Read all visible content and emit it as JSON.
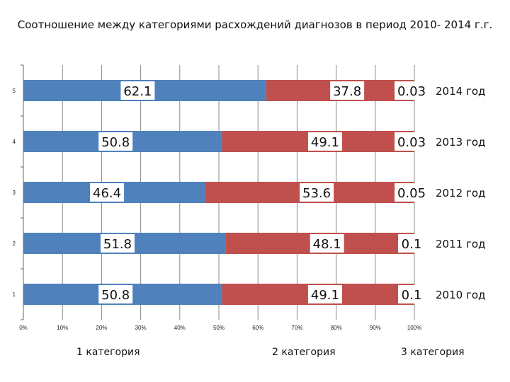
{
  "title": "Соотношение между категориями расхождений диагнозов  в период 2010- 2014 г.г.",
  "legend": [
    "1 категория",
    "2 категория",
    "3 категория"
  ],
  "colors": {
    "cat1": "#4F81BD",
    "cat2": "#C0504D",
    "cat3": "#9BBB59"
  },
  "chart_data": {
    "type": "bar",
    "orientation": "horizontal",
    "stacked": "100%",
    "categories": [
      "1",
      "2",
      "3",
      "4",
      "5"
    ],
    "row_labels": [
      "2010 год",
      "2011 год",
      "2012 год",
      "2013 год",
      "2014 год"
    ],
    "series": [
      {
        "name": "1 категория",
        "values": [
          50.8,
          51.8,
          46.4,
          50.8,
          62.1
        ],
        "labels": [
          "50.8",
          "51.8",
          "46.4",
          "50.8",
          "62.1"
        ]
      },
      {
        "name": "2 категория",
        "values": [
          49.1,
          48.1,
          53.6,
          49.1,
          37.8
        ],
        "labels": [
          "49.1",
          "48.1",
          "53.6",
          "49.1",
          "37.8"
        ]
      },
      {
        "name": "3 категория",
        "values": [
          0.1,
          0.1,
          0.05,
          0.03,
          0.03
        ],
        "labels": [
          "0.1",
          "0.1",
          "0.05",
          "0.03",
          "0.03"
        ]
      }
    ],
    "xlim": [
      0,
      100
    ],
    "xticks": [
      "0%",
      "10%",
      "20%",
      "30%",
      "40%",
      "50%",
      "60%",
      "70%",
      "80%",
      "90%",
      "100%"
    ],
    "grid": true
  }
}
